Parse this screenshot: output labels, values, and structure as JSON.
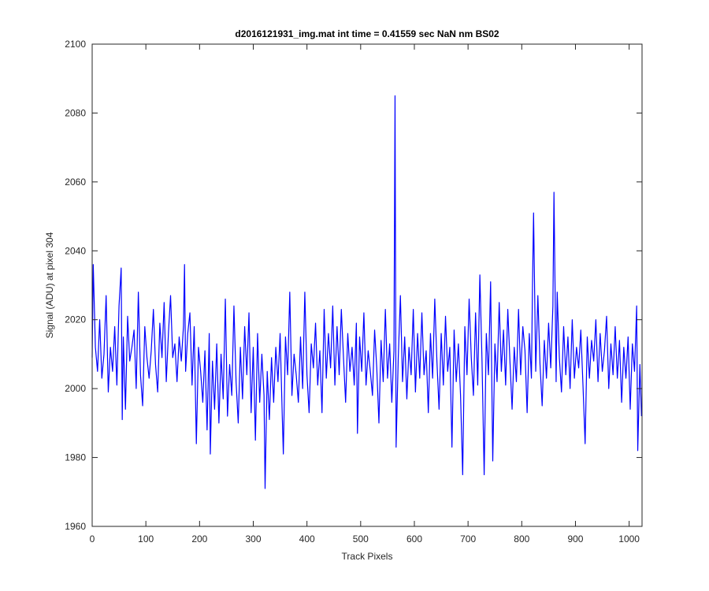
{
  "chart_data": {
    "type": "line",
    "title": "d2016121931_img.mat int time = 0.41559 sec  NaN nm BS02",
    "xlabel": "Track Pixels",
    "ylabel": "Signal (ADU) at pixel 304",
    "xlim": [
      0,
      1024
    ],
    "ylim": [
      1960,
      2100
    ],
    "xticks": [
      0,
      100,
      200,
      300,
      400,
      500,
      600,
      700,
      800,
      900,
      1000
    ],
    "yticks": [
      1960,
      1980,
      2000,
      2020,
      2040,
      2060,
      2080,
      2100
    ],
    "xtick_labels": [
      "0",
      "100",
      "200",
      "300",
      "400",
      "500",
      "600",
      "700",
      "800",
      "900",
      "1000"
    ],
    "ytick_labels": [
      "1960",
      "1980",
      "2000",
      "2020",
      "2040",
      "2060",
      "2080",
      "2100"
    ],
    "grid": false,
    "legend": "none",
    "series": [
      {
        "color": "#0000ff",
        "n_points": 1024,
        "baseline": 2008,
        "noise_range": [
          1991,
          2027
        ],
        "values": [
          [
            0,
            2009
          ],
          [
            2,
            2036
          ],
          [
            6,
            2012
          ],
          [
            10,
            2005
          ],
          [
            14,
            2020
          ],
          [
            18,
            2003
          ],
          [
            22,
            2010
          ],
          [
            26,
            2027
          ],
          [
            30,
            1999
          ],
          [
            34,
            2012
          ],
          [
            38,
            2005
          ],
          [
            42,
            2018
          ],
          [
            46,
            2001
          ],
          [
            50,
            2024
          ],
          [
            54,
            2035
          ],
          [
            56,
            1991
          ],
          [
            58,
            2015
          ],
          [
            62,
            1994
          ],
          [
            66,
            2021
          ],
          [
            70,
            2008
          ],
          [
            74,
            2012
          ],
          [
            78,
            2017
          ],
          [
            82,
            2000
          ],
          [
            86,
            2028
          ],
          [
            90,
            2004
          ],
          [
            94,
            1995
          ],
          [
            98,
            2018
          ],
          [
            102,
            2009
          ],
          [
            106,
            2003
          ],
          [
            110,
            2011
          ],
          [
            114,
            2023
          ],
          [
            118,
            2007
          ],
          [
            122,
            1999
          ],
          [
            126,
            2019
          ],
          [
            130,
            2009
          ],
          [
            134,
            2025
          ],
          [
            138,
            2002
          ],
          [
            142,
            2016
          ],
          [
            146,
            2027
          ],
          [
            150,
            2009
          ],
          [
            154,
            2013
          ],
          [
            158,
            2002
          ],
          [
            162,
            2015
          ],
          [
            166,
            2008
          ],
          [
            170,
            2018
          ],
          [
            172,
            2036
          ],
          [
            174,
            2005
          ],
          [
            178,
            2016
          ],
          [
            182,
            2022
          ],
          [
            186,
            2001
          ],
          [
            190,
            2018
          ],
          [
            194,
            1984
          ],
          [
            198,
            2012
          ],
          [
            202,
            2005
          ],
          [
            206,
            1996
          ],
          [
            210,
            2011
          ],
          [
            214,
            1988
          ],
          [
            218,
            2016
          ],
          [
            220,
            1981
          ],
          [
            224,
            2008
          ],
          [
            228,
            1994
          ],
          [
            232,
            2013
          ],
          [
            236,
            1990
          ],
          [
            240,
            2010
          ],
          [
            244,
            1997
          ],
          [
            248,
            2026
          ],
          [
            252,
            1992
          ],
          [
            256,
            2007
          ],
          [
            260,
            1998
          ],
          [
            264,
            2024
          ],
          [
            268,
            2002
          ],
          [
            272,
            1990
          ],
          [
            276,
            2012
          ],
          [
            280,
            1997
          ],
          [
            284,
            2018
          ],
          [
            288,
            2004
          ],
          [
            292,
            2022
          ],
          [
            296,
            1993
          ],
          [
            300,
            2012
          ],
          [
            304,
            1985
          ],
          [
            308,
            2016
          ],
          [
            312,
            1996
          ],
          [
            316,
            2010
          ],
          [
            320,
            1998
          ],
          [
            322,
            1971
          ],
          [
            326,
            2005
          ],
          [
            330,
            1991
          ],
          [
            334,
            2009
          ],
          [
            338,
            1996
          ],
          [
            342,
            2012
          ],
          [
            346,
            2002
          ],
          [
            350,
            2016
          ],
          [
            354,
            1992
          ],
          [
            356,
            1981
          ],
          [
            360,
            2015
          ],
          [
            364,
            2004
          ],
          [
            368,
            2028
          ],
          [
            372,
            1998
          ],
          [
            376,
            2010
          ],
          [
            380,
            2004
          ],
          [
            384,
            1996
          ],
          [
            388,
            2015
          ],
          [
            392,
            2000
          ],
          [
            396,
            2028
          ],
          [
            400,
            2004
          ],
          [
            404,
            1993
          ],
          [
            408,
            2013
          ],
          [
            412,
            2006
          ],
          [
            416,
            2019
          ],
          [
            420,
            2001
          ],
          [
            424,
            2011
          ],
          [
            428,
            1993
          ],
          [
            432,
            2023
          ],
          [
            436,
            2003
          ],
          [
            440,
            2016
          ],
          [
            444,
            2006
          ],
          [
            448,
            2024
          ],
          [
            452,
            2001
          ],
          [
            456,
            2018
          ],
          [
            460,
            2004
          ],
          [
            464,
            2023
          ],
          [
            468,
            2009
          ],
          [
            472,
            1996
          ],
          [
            476,
            2016
          ],
          [
            480,
            2005
          ],
          [
            484,
            2012
          ],
          [
            488,
            2001
          ],
          [
            492,
            2019
          ],
          [
            494,
            1987
          ],
          [
            498,
            2015
          ],
          [
            502,
            2005
          ],
          [
            506,
            2022
          ],
          [
            510,
            2001
          ],
          [
            514,
            2011
          ],
          [
            518,
            2005
          ],
          [
            522,
            1998
          ],
          [
            526,
            2017
          ],
          [
            530,
            2006
          ],
          [
            534,
            1990
          ],
          [
            538,
            2014
          ],
          [
            542,
            2002
          ],
          [
            546,
            2023
          ],
          [
            550,
            2003
          ],
          [
            554,
            2013
          ],
          [
            558,
            1996
          ],
          [
            562,
            2011
          ],
          [
            564,
            2085
          ],
          [
            566,
            1983
          ],
          [
            570,
            2009
          ],
          [
            574,
            2027
          ],
          [
            578,
            2002
          ],
          [
            582,
            2015
          ],
          [
            586,
            1997
          ],
          [
            590,
            2012
          ],
          [
            594,
            2004
          ],
          [
            598,
            2023
          ],
          [
            602,
            1999
          ],
          [
            606,
            2016
          ],
          [
            610,
            2003
          ],
          [
            614,
            2022
          ],
          [
            618,
            2004
          ],
          [
            622,
            2011
          ],
          [
            626,
            1993
          ],
          [
            630,
            2016
          ],
          [
            634,
            2003
          ],
          [
            638,
            2026
          ],
          [
            642,
            2008
          ],
          [
            646,
            1994
          ],
          [
            650,
            2016
          ],
          [
            654,
            2001
          ],
          [
            658,
            2021
          ],
          [
            662,
            2005
          ],
          [
            666,
            2012
          ],
          [
            670,
            1983
          ],
          [
            674,
            2017
          ],
          [
            678,
            2002
          ],
          [
            682,
            2013
          ],
          [
            686,
            1998
          ],
          [
            690,
            1975
          ],
          [
            694,
            2018
          ],
          [
            698,
            2004
          ],
          [
            702,
            2026
          ],
          [
            706,
            2009
          ],
          [
            710,
            1998
          ],
          [
            714,
            2022
          ],
          [
            718,
            2001
          ],
          [
            722,
            2033
          ],
          [
            726,
            2008
          ],
          [
            730,
            1975
          ],
          [
            734,
            2016
          ],
          [
            738,
            2004
          ],
          [
            742,
            2031
          ],
          [
            746,
            1979
          ],
          [
            750,
            2013
          ],
          [
            754,
            2002
          ],
          [
            758,
            2025
          ],
          [
            762,
            2005
          ],
          [
            766,
            2017
          ],
          [
            770,
            2001
          ],
          [
            774,
            2023
          ],
          [
            778,
            2008
          ],
          [
            782,
            1994
          ],
          [
            786,
            2012
          ],
          [
            790,
            2002
          ],
          [
            794,
            2023
          ],
          [
            798,
            2004
          ],
          [
            802,
            2018
          ],
          [
            806,
            2011
          ],
          [
            810,
            1993
          ],
          [
            814,
            2016
          ],
          [
            818,
            2003
          ],
          [
            820,
            2030
          ],
          [
            822,
            2051
          ],
          [
            826,
            2005
          ],
          [
            830,
            2027
          ],
          [
            834,
            2007
          ],
          [
            838,
            1995
          ],
          [
            842,
            2014
          ],
          [
            846,
            2003
          ],
          [
            850,
            2019
          ],
          [
            854,
            2006
          ],
          [
            858,
            2024
          ],
          [
            860,
            2057
          ],
          [
            864,
            2002
          ],
          [
            866,
            2028
          ],
          [
            870,
            2009
          ],
          [
            874,
            1999
          ],
          [
            878,
            2018
          ],
          [
            882,
            2004
          ],
          [
            886,
            2015
          ],
          [
            890,
            2000
          ],
          [
            894,
            2020
          ],
          [
            898,
            2003
          ],
          [
            902,
            2012
          ],
          [
            906,
            2006
          ],
          [
            910,
            2017
          ],
          [
            914,
            2001
          ],
          [
            918,
            1984
          ],
          [
            922,
            2015
          ],
          [
            926,
            2003
          ],
          [
            930,
            2014
          ],
          [
            934,
            2008
          ],
          [
            938,
            2020
          ],
          [
            942,
            2002
          ],
          [
            946,
            2016
          ],
          [
            950,
            2005
          ],
          [
            954,
            2011
          ],
          [
            958,
            2021
          ],
          [
            962,
            2000
          ],
          [
            966,
            2013
          ],
          [
            970,
            2004
          ],
          [
            974,
            2018
          ],
          [
            978,
            2003
          ],
          [
            982,
            2014
          ],
          [
            986,
            1996
          ],
          [
            990,
            2012
          ],
          [
            994,
            2003
          ],
          [
            998,
            2015
          ],
          [
            1002,
            1994
          ],
          [
            1006,
            2013
          ],
          [
            1010,
            2005
          ],
          [
            1014,
            2024
          ],
          [
            1016,
            1982
          ],
          [
            1020,
            2007
          ],
          [
            1023,
            1992
          ]
        ]
      }
    ]
  }
}
